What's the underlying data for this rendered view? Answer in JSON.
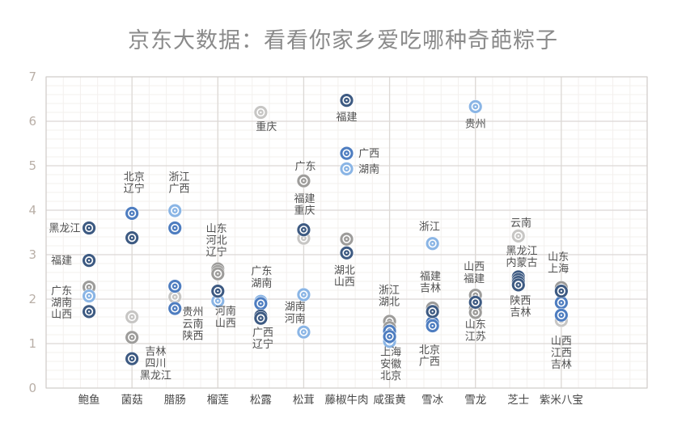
{
  "chart_data": {
    "type": "scatter",
    "title": "京东大数据：看看你家乡爱吃哪种奇葩粽子",
    "xlabel": "",
    "ylabel": "",
    "x_range": [
      0,
      14
    ],
    "y_range": [
      0,
      7
    ],
    "y_ticks": [
      0,
      1,
      2,
      3,
      4,
      5,
      6,
      7
    ],
    "grid": {
      "minor_x_step": 0.4,
      "minor_y_step": 0.2,
      "major_x_step": 2,
      "major_y_step": 1,
      "grid_on": true
    },
    "legend": "none",
    "palette": {
      "navy": "#3d5a82",
      "blue": "#4e7dc0",
      "lightblue": "#8ab5e5",
      "gray": "#9d9c9a",
      "lightgray": "#c7c6c4"
    },
    "categories": [
      "鲍鱼",
      "菌菇",
      "腊肠",
      "榴莲",
      "松露",
      "松茸",
      "藤椒牛肉",
      "咸蛋黄",
      "雪冰",
      "雪龙",
      "芝士",
      "紫米八宝"
    ],
    "points": [
      {
        "category": "鲍鱼",
        "x": 1,
        "province": "黑龙江",
        "value": 3.6,
        "color": "navy"
      },
      {
        "category": "鲍鱼",
        "x": 1,
        "province": "福建",
        "value": 2.87,
        "color": "navy"
      },
      {
        "category": "鲍鱼",
        "x": 1,
        "province": "广东",
        "value": 2.27,
        "color": "gray"
      },
      {
        "category": "鲍鱼",
        "x": 1,
        "province": "湖南",
        "value": 2.07,
        "color": "lightblue"
      },
      {
        "category": "鲍鱼",
        "x": 1,
        "province": "山西",
        "value": 1.72,
        "color": "navy"
      },
      {
        "category": "菌菇",
        "x": 2,
        "province": "北京",
        "value": 3.93,
        "color": "blue"
      },
      {
        "category": "菌菇",
        "x": 2,
        "province": "辽宁",
        "value": 3.38,
        "color": "navy"
      },
      {
        "category": "菌菇",
        "x": 2,
        "province": "吉林",
        "value": 1.6,
        "color": "lightgray"
      },
      {
        "category": "菌菇",
        "x": 2,
        "province": "四川",
        "value": 1.14,
        "color": "gray"
      },
      {
        "category": "菌菇",
        "x": 2,
        "province": "黑龙江",
        "value": 0.66,
        "color": "navy"
      },
      {
        "category": "腊肠",
        "x": 3,
        "province": "浙江",
        "value": 3.99,
        "color": "lightblue"
      },
      {
        "category": "腊肠",
        "x": 3,
        "province": "广西",
        "value": 3.6,
        "color": "blue"
      },
      {
        "category": "腊肠",
        "x": 3,
        "province": "贵州",
        "value": 2.29,
        "color": "blue"
      },
      {
        "category": "腊肠",
        "x": 3,
        "province": "云南",
        "value": 2.05,
        "color": "lightgray"
      },
      {
        "category": "腊肠",
        "x": 3,
        "province": "陕西",
        "value": 1.79,
        "color": "blue"
      },
      {
        "category": "榴莲",
        "x": 4,
        "province": "山东",
        "value": 2.68,
        "color": "gray"
      },
      {
        "category": "榴莲",
        "x": 4,
        "province": "河北",
        "value": 2.62,
        "color": "gray"
      },
      {
        "category": "榴莲",
        "x": 4,
        "province": "辽宁",
        "value": 2.57,
        "color": "gray"
      },
      {
        "category": "榴莲",
        "x": 4,
        "province": "河南",
        "value": 2.18,
        "color": "navy"
      },
      {
        "category": "榴莲",
        "x": 4,
        "province": "山西",
        "value": 1.96,
        "color": "lightblue"
      },
      {
        "category": "松露",
        "x": 5,
        "province": "重庆",
        "value": 6.2,
        "color": "lightgray"
      },
      {
        "category": "松露",
        "x": 5,
        "province": "湖南",
        "value": 1.95,
        "color": "lightblue"
      },
      {
        "category": "松露",
        "x": 5,
        "province": "广东",
        "value": 1.9,
        "color": "blue"
      },
      {
        "category": "松露",
        "x": 5,
        "province": "广西",
        "value": 1.62,
        "color": "navy"
      },
      {
        "category": "松露",
        "x": 5,
        "province": "辽宁",
        "value": 1.57,
        "color": "navy"
      },
      {
        "category": "松茸",
        "x": 6,
        "province": "广东",
        "value": 4.66,
        "color": "gray"
      },
      {
        "category": "松茸",
        "x": 6,
        "province": "福建",
        "value": 3.56,
        "color": "navy"
      },
      {
        "category": "松茸",
        "x": 6,
        "province": "重庆",
        "value": 3.37,
        "color": "lightgray"
      },
      {
        "category": "松茸",
        "x": 6,
        "province": "湖南",
        "value": 2.1,
        "color": "lightblue"
      },
      {
        "category": "松茸",
        "x": 6,
        "province": "河南",
        "value": 1.26,
        "color": "lightblue"
      },
      {
        "category": "藤椒牛肉",
        "x": 7,
        "province": "福建",
        "value": 6.47,
        "color": "navy"
      },
      {
        "category": "藤椒牛肉",
        "x": 7,
        "province": "广西",
        "value": 5.28,
        "color": "blue"
      },
      {
        "category": "藤椒牛肉",
        "x": 7,
        "province": "湖南",
        "value": 4.93,
        "color": "lightblue"
      },
      {
        "category": "藤椒牛肉",
        "x": 7,
        "province": "湖北",
        "value": 3.35,
        "color": "gray"
      },
      {
        "category": "藤椒牛肉",
        "x": 7,
        "province": "山西",
        "value": 3.04,
        "color": "navy"
      },
      {
        "category": "咸蛋黄",
        "x": 8,
        "province": "浙江",
        "value": 1.5,
        "color": "gray"
      },
      {
        "category": "咸蛋黄",
        "x": 8,
        "province": "湖北",
        "value": 1.36,
        "color": "gray"
      },
      {
        "category": "咸蛋黄",
        "x": 8,
        "province": "上海",
        "value": 1.28,
        "color": "blue"
      },
      {
        "category": "咸蛋黄",
        "x": 8,
        "province": "安徽",
        "value": 1.16,
        "color": "blue"
      },
      {
        "category": "咸蛋黄",
        "x": 8,
        "province": "北京",
        "value": 1.05,
        "color": "lightblue"
      },
      {
        "category": "雪冰",
        "x": 9,
        "province": "浙江",
        "value": 3.25,
        "color": "lightblue"
      },
      {
        "category": "雪冰",
        "x": 9,
        "province": "福建",
        "value": 1.8,
        "color": "gray"
      },
      {
        "category": "雪冰",
        "x": 9,
        "province": "吉林",
        "value": 1.72,
        "color": "navy"
      },
      {
        "category": "雪冰",
        "x": 9,
        "province": "北京",
        "value": 1.47,
        "color": "blue"
      },
      {
        "category": "雪冰",
        "x": 9,
        "province": "广西",
        "value": 1.4,
        "color": "blue"
      },
      {
        "category": "雪龙",
        "x": 10,
        "province": "贵州",
        "value": 6.33,
        "color": "lightblue"
      },
      {
        "category": "雪龙",
        "x": 10,
        "province": "山西",
        "value": 2.09,
        "color": "gray"
      },
      {
        "category": "雪龙",
        "x": 10,
        "province": "福建",
        "value": 1.93,
        "color": "navy"
      },
      {
        "category": "雪龙",
        "x": 10,
        "province": "山东",
        "value": 1.79,
        "color": "gray"
      },
      {
        "category": "雪龙",
        "x": 10,
        "province": "江苏",
        "value": 1.7,
        "color": "gray"
      },
      {
        "category": "芝士",
        "x": 11,
        "province": "云南",
        "value": 3.42,
        "color": "lightgray"
      },
      {
        "category": "芝士",
        "x": 11,
        "province": "黑龙江",
        "value": 2.5,
        "color": "navy"
      },
      {
        "category": "芝士",
        "x": 11,
        "province": "内蒙古",
        "value": 2.44,
        "color": "navy"
      },
      {
        "category": "芝士",
        "x": 11,
        "province": "陕西",
        "value": 2.38,
        "color": "navy"
      },
      {
        "category": "芝士",
        "x": 11,
        "province": "吉林",
        "value": 2.32,
        "color": "navy"
      },
      {
        "category": "紫米八宝",
        "x": 12,
        "province": "山东",
        "value": 2.26,
        "color": "gray"
      },
      {
        "category": "紫米八宝",
        "x": 12,
        "province": "上海",
        "value": 2.18,
        "color": "navy"
      },
      {
        "category": "紫米八宝",
        "x": 12,
        "province": "山西",
        "value": 1.92,
        "color": "blue"
      },
      {
        "category": "紫米八宝",
        "x": 12,
        "province": "江西",
        "value": 1.64,
        "color": "blue"
      },
      {
        "category": "紫米八宝",
        "x": 12,
        "province": "吉林",
        "value": 1.52,
        "color": "lightgray"
      }
    ],
    "annotations": [
      {
        "lines": [
          "黑龙江"
        ],
        "x": 0.43,
        "y": 3.6
      },
      {
        "lines": [
          "福建"
        ],
        "x": 0.36,
        "y": 2.87
      },
      {
        "lines": [
          "广东",
          "湖南",
          "山西"
        ],
        "x": 0.36,
        "y": 1.93
      },
      {
        "lines": [
          "北京",
          "辽宁"
        ],
        "x": 2.05,
        "y": 4.62
      },
      {
        "lines": [
          "吉林",
          "四川",
          "黑龙江"
        ],
        "x": 2.55,
        "y": 0.56
      },
      {
        "lines": [
          "浙江",
          "广西"
        ],
        "x": 3.1,
        "y": 4.62
      },
      {
        "lines": [
          "贵州",
          "云南",
          "陕西"
        ],
        "x": 3.42,
        "y": 1.45
      },
      {
        "lines": [
          "山东",
          "河北",
          "辽宁"
        ],
        "x": 3.97,
        "y": 3.33
      },
      {
        "lines": [
          "河南",
          "山西"
        ],
        "x": 4.18,
        "y": 1.6
      },
      {
        "lines": [
          "重庆"
        ],
        "x": 5.13,
        "y": 5.88
      },
      {
        "lines": [
          "广东",
          "湖南"
        ],
        "x": 5.02,
        "y": 2.5
      },
      {
        "lines": [
          "广西",
          "辽宁"
        ],
        "x": 5.05,
        "y": 1.12
      },
      {
        "lines": [
          "广东"
        ],
        "x": 6.04,
        "y": 4.99
      },
      {
        "lines": [
          "福建",
          "重庆"
        ],
        "x": 6.02,
        "y": 4.13
      },
      {
        "lines": [
          "湖南",
          "河南"
        ],
        "x": 5.8,
        "y": 1.7
      },
      {
        "lines": [
          "福建"
        ],
        "x": 7.0,
        "y": 6.1
      },
      {
        "lines": [
          "广西"
        ],
        "x": 7.52,
        "y": 5.28
      },
      {
        "lines": [
          "湖南"
        ],
        "x": 7.52,
        "y": 4.93
      },
      {
        "lines": [
          "湖北",
          "山西"
        ],
        "x": 6.95,
        "y": 2.52
      },
      {
        "lines": [
          "浙江",
          "湖北"
        ],
        "x": 7.99,
        "y": 2.08
      },
      {
        "lines": [
          "上海",
          "安徽",
          "北京"
        ],
        "x": 8.03,
        "y": 0.55
      },
      {
        "lines": [
          "浙江"
        ],
        "x": 8.93,
        "y": 3.64
      },
      {
        "lines": [
          "福建",
          "吉林"
        ],
        "x": 8.95,
        "y": 2.39
      },
      {
        "lines": [
          "北京",
          "广西"
        ],
        "x": 8.93,
        "y": 0.73
      },
      {
        "lines": [
          "贵州"
        ],
        "x": 10.0,
        "y": 5.95
      },
      {
        "lines": [
          "山西",
          "福建"
        ],
        "x": 9.97,
        "y": 2.6
      },
      {
        "lines": [
          "山东",
          "江苏"
        ],
        "x": 10.0,
        "y": 1.3
      },
      {
        "lines": [
          "云南"
        ],
        "x": 11.06,
        "y": 3.72
      },
      {
        "lines": [
          "黑龙江",
          "内蒙古"
        ],
        "x": 11.08,
        "y": 2.96
      },
      {
        "lines": [
          "陕西",
          "吉林"
        ],
        "x": 11.05,
        "y": 1.84
      },
      {
        "lines": [
          "山东",
          "上海"
        ],
        "x": 11.93,
        "y": 2.82
      },
      {
        "lines": [
          "山西",
          "江西",
          "吉林"
        ],
        "x": 12.0,
        "y": 0.8
      }
    ],
    "styles": {
      "title_color": "#8a8a8a",
      "ytick_color": "#b9afa7",
      "xlabel_color": "#484848",
      "annotation_color": "#4f4f4f",
      "minor_grid_color": "#f3f0ee",
      "major_grid_color": "#dcd8d5",
      "border_color": "#cfcbc8"
    }
  }
}
